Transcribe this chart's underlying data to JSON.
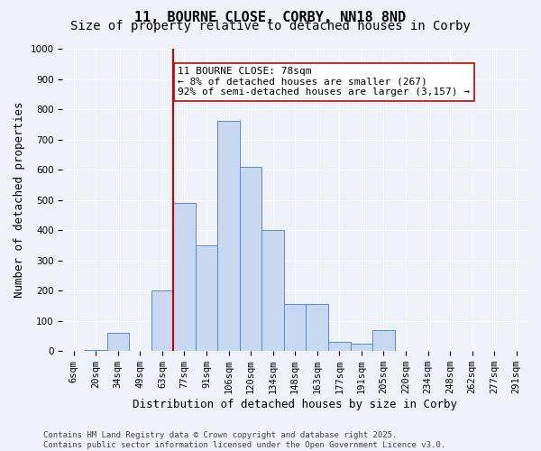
{
  "title_line1": "11, BOURNE CLOSE, CORBY, NN18 8ND",
  "title_line2": "Size of property relative to detached houses in Corby",
  "xlabel": "Distribution of detached houses by size in Corby",
  "ylabel": "Number of detached properties",
  "bin_labels": [
    "6sqm",
    "20sqm",
    "34sqm",
    "49sqm",
    "63sqm",
    "77sqm",
    "91sqm",
    "106sqm",
    "120sqm",
    "134sqm",
    "148sqm",
    "163sqm",
    "177sqm",
    "191sqm",
    "205sqm",
    "220sqm",
    "234sqm",
    "248sqm",
    "262sqm",
    "277sqm",
    "291sqm"
  ],
  "bar_values": [
    0,
    5,
    60,
    0,
    200,
    490,
    350,
    760,
    610,
    400,
    155,
    155,
    30,
    25,
    70,
    0,
    0,
    0,
    0,
    0,
    0
  ],
  "bar_color": "#c8d8f0",
  "bar_edge_color": "#5b8ac5",
  "vline_x": 4.5,
  "vline_color": "#cc0000",
  "annotation_text": "11 BOURNE CLOSE: 78sqm\n← 8% of detached houses are smaller (267)\n92% of semi-detached houses are larger (3,157) →",
  "annotation_box_color": "#ffffff",
  "annotation_box_edge": "#cc0000",
  "ylim": [
    0,
    1000
  ],
  "yticks": [
    0,
    100,
    200,
    300,
    400,
    500,
    600,
    700,
    800,
    900,
    1000
  ],
  "background_color": "#eef2f8",
  "footer_text": "Contains HM Land Registry data © Crown copyright and database right 2025.\nContains public sector information licensed under the Open Government Licence v3.0.",
  "title_fontsize": 11,
  "subtitle_fontsize": 10,
  "axis_label_fontsize": 9,
  "tick_fontsize": 7.5,
  "annotation_fontsize": 8
}
